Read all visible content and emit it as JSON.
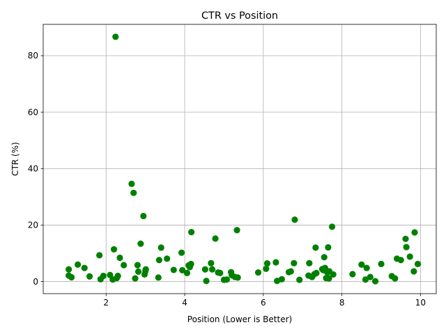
{
  "chart_data": {
    "type": "scatter",
    "title": "CTR vs Position",
    "xlabel": "Position (Lower is Better)",
    "ylabel": "CTR (%)",
    "xlim": [
      0.4,
      10.4
    ],
    "ylim": [
      -4.3,
      91.1
    ],
    "xticks": [
      2,
      4,
      6,
      8,
      10
    ],
    "yticks": [
      0,
      20,
      40,
      60,
      80
    ],
    "grid": true,
    "marker_color": "#008000",
    "points": [
      {
        "x": 1.05,
        "y": 4.3
      },
      {
        "x": 1.05,
        "y": 2.1
      },
      {
        "x": 1.12,
        "y": 1.5
      },
      {
        "x": 1.28,
        "y": 6.0
      },
      {
        "x": 1.45,
        "y": 4.8
      },
      {
        "x": 1.58,
        "y": 1.8
      },
      {
        "x": 1.83,
        "y": 9.3
      },
      {
        "x": 1.86,
        "y": 0.8
      },
      {
        "x": 1.93,
        "y": 2.0
      },
      {
        "x": 2.1,
        "y": 2.3
      },
      {
        "x": 2.17,
        "y": 0.7
      },
      {
        "x": 2.2,
        "y": 11.4
      },
      {
        "x": 2.24,
        "y": 86.7
      },
      {
        "x": 2.27,
        "y": 1.2
      },
      {
        "x": 2.3,
        "y": 2.0
      },
      {
        "x": 2.35,
        "y": 8.4
      },
      {
        "x": 2.45,
        "y": 5.8
      },
      {
        "x": 2.65,
        "y": 34.6
      },
      {
        "x": 2.7,
        "y": 31.4
      },
      {
        "x": 2.74,
        "y": 1.1
      },
      {
        "x": 2.8,
        "y": 5.8
      },
      {
        "x": 2.82,
        "y": 3.5
      },
      {
        "x": 2.88,
        "y": 13.4
      },
      {
        "x": 2.95,
        "y": 23.2
      },
      {
        "x": 2.98,
        "y": 2.5
      },
      {
        "x": 3.0,
        "y": 3.7
      },
      {
        "x": 3.01,
        "y": 4.3
      },
      {
        "x": 3.33,
        "y": 1.4
      },
      {
        "x": 3.35,
        "y": 7.6
      },
      {
        "x": 3.4,
        "y": 12.0
      },
      {
        "x": 3.55,
        "y": 8.1
      },
      {
        "x": 3.72,
        "y": 4.1
      },
      {
        "x": 3.92,
        "y": 10.2
      },
      {
        "x": 3.94,
        "y": 4.0
      },
      {
        "x": 4.06,
        "y": 3.0
      },
      {
        "x": 4.1,
        "y": 5.7
      },
      {
        "x": 4.13,
        "y": 5.1
      },
      {
        "x": 4.16,
        "y": 6.2
      },
      {
        "x": 4.17,
        "y": 17.5
      },
      {
        "x": 4.52,
        "y": 4.3
      },
      {
        "x": 4.55,
        "y": 0.2
      },
      {
        "x": 4.67,
        "y": 6.5
      },
      {
        "x": 4.7,
        "y": 4.3
      },
      {
        "x": 4.78,
        "y": 15.2
      },
      {
        "x": 4.85,
        "y": 3.2
      },
      {
        "x": 4.9,
        "y": 3.0
      },
      {
        "x": 5.0,
        "y": 0.6
      },
      {
        "x": 5.07,
        "y": 0.7
      },
      {
        "x": 5.18,
        "y": 3.3
      },
      {
        "x": 5.2,
        "y": 2.2
      },
      {
        "x": 5.28,
        "y": 1.6
      },
      {
        "x": 5.33,
        "y": 18.2
      },
      {
        "x": 5.35,
        "y": 1.4
      },
      {
        "x": 5.87,
        "y": 3.2
      },
      {
        "x": 6.07,
        "y": 4.5
      },
      {
        "x": 6.1,
        "y": 6.4
      },
      {
        "x": 6.32,
        "y": 6.8
      },
      {
        "x": 6.35,
        "y": 0.2
      },
      {
        "x": 6.47,
        "y": 0.8
      },
      {
        "x": 6.65,
        "y": 3.3
      },
      {
        "x": 6.7,
        "y": 3.6
      },
      {
        "x": 6.78,
        "y": 6.5
      },
      {
        "x": 6.8,
        "y": 21.9
      },
      {
        "x": 6.92,
        "y": 0.6
      },
      {
        "x": 7.15,
        "y": 2.1
      },
      {
        "x": 7.17,
        "y": 6.5
      },
      {
        "x": 7.24,
        "y": 1.6
      },
      {
        "x": 7.3,
        "y": 2.6
      },
      {
        "x": 7.33,
        "y": 12.0
      },
      {
        "x": 7.35,
        "y": 3.0
      },
      {
        "x": 7.5,
        "y": 4.4
      },
      {
        "x": 7.53,
        "y": 4.0
      },
      {
        "x": 7.55,
        "y": 8.6
      },
      {
        "x": 7.57,
        "y": 4.8
      },
      {
        "x": 7.6,
        "y": 1.2
      },
      {
        "x": 7.63,
        "y": 3.2
      },
      {
        "x": 7.65,
        "y": 12.1
      },
      {
        "x": 7.67,
        "y": 1.1
      },
      {
        "x": 7.68,
        "y": 3.6
      },
      {
        "x": 7.75,
        "y": 19.4
      },
      {
        "x": 7.78,
        "y": 2.5
      },
      {
        "x": 8.27,
        "y": 2.6
      },
      {
        "x": 8.5,
        "y": 6.0
      },
      {
        "x": 8.6,
        "y": 0.7
      },
      {
        "x": 8.63,
        "y": 4.8
      },
      {
        "x": 8.72,
        "y": 1.6
      },
      {
        "x": 8.85,
        "y": 0.1
      },
      {
        "x": 9.0,
        "y": 6.2
      },
      {
        "x": 9.27,
        "y": 1.9
      },
      {
        "x": 9.35,
        "y": 1.1
      },
      {
        "x": 9.4,
        "y": 8.1
      },
      {
        "x": 9.5,
        "y": 7.6
      },
      {
        "x": 9.62,
        "y": 15.1
      },
      {
        "x": 9.64,
        "y": 12.2
      },
      {
        "x": 9.73,
        "y": 8.8
      },
      {
        "x": 9.83,
        "y": 3.6
      },
      {
        "x": 9.85,
        "y": 17.4
      },
      {
        "x": 9.93,
        "y": 6.2
      }
    ]
  }
}
